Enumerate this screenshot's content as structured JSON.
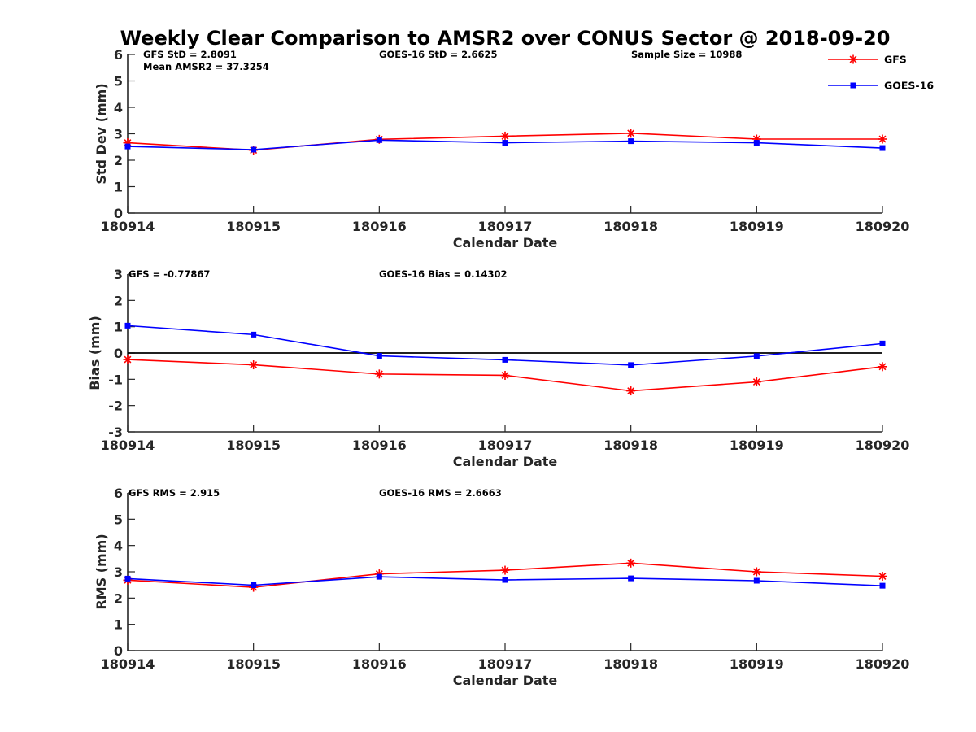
{
  "figure": {
    "title": "Weekly Clear Comparison to AMSR2 over CONUS Sector @ 2018-09-20"
  },
  "legend": {
    "placement": "top-right",
    "entries": [
      {
        "name": "GFS",
        "color": "#ff0000",
        "marker": "asterisk"
      },
      {
        "name": "GOES-16",
        "color": "#0000ff",
        "marker": "square"
      }
    ]
  },
  "chart_data": [
    {
      "type": "line",
      "id": "stddev",
      "xlabel": "Calendar Date",
      "ylabel": "Std Dev (mm)",
      "categories": [
        "180914",
        "180915",
        "180916",
        "180917",
        "180918",
        "180919",
        "180920"
      ],
      "ylim": [
        0,
        6
      ],
      "yticks": [
        "0",
        "1",
        "2",
        "3",
        "4",
        "5",
        "6"
      ],
      "zero_line": false,
      "annotations": [
        {
          "text": "GFS StD = 2.8091",
          "anchor": "left"
        },
        {
          "text": "Mean AMSR2 = 37.3254",
          "anchor": "left-line2"
        },
        {
          "text": "GOES-16 StD = 2.6625",
          "anchor": "center"
        },
        {
          "text": "Sample Size = 10988",
          "anchor": "right"
        }
      ],
      "series": [
        {
          "name": "GFS",
          "color": "#ff0000",
          "marker": "asterisk",
          "values": [
            2.66,
            2.38,
            2.79,
            2.91,
            3.02,
            2.8,
            2.8
          ]
        },
        {
          "name": "GOES-16",
          "color": "#0000ff",
          "marker": "square",
          "values": [
            2.52,
            2.4,
            2.76,
            2.66,
            2.72,
            2.66,
            2.46
          ]
        }
      ]
    },
    {
      "type": "line",
      "id": "bias",
      "xlabel": "Calendar Date",
      "ylabel": "Bias (mm)",
      "categories": [
        "180914",
        "180915",
        "180916",
        "180917",
        "180918",
        "180919",
        "180920"
      ],
      "ylim": [
        -3,
        3
      ],
      "yticks": [
        "-3",
        "-2",
        "-1",
        "0",
        "1",
        "2",
        "3"
      ],
      "zero_line": true,
      "annotations": [
        {
          "text": "GFS = -0.77867",
          "anchor": "left"
        },
        {
          "text": "GOES-16 Bias  = 0.14302",
          "anchor": "center"
        }
      ],
      "series": [
        {
          "name": "GFS",
          "color": "#ff0000",
          "marker": "asterisk",
          "values": [
            -0.25,
            -0.45,
            -0.8,
            -0.85,
            -1.44,
            -1.1,
            -0.52
          ]
        },
        {
          "name": "GOES-16",
          "color": "#0000ff",
          "marker": "square",
          "values": [
            1.04,
            0.7,
            -0.11,
            -0.26,
            -0.46,
            -0.12,
            0.36
          ]
        }
      ]
    },
    {
      "type": "line",
      "id": "rms",
      "xlabel": "Calendar Date",
      "ylabel": "RMS (mm)",
      "categories": [
        "180914",
        "180915",
        "180916",
        "180917",
        "180918",
        "180919",
        "180920"
      ],
      "ylim": [
        0,
        6
      ],
      "yticks": [
        "0",
        "1",
        "2",
        "3",
        "4",
        "5",
        "6"
      ],
      "zero_line": false,
      "annotations": [
        {
          "text": "GFS RMS = 2.915",
          "anchor": "left"
        },
        {
          "text": "GOES-16 RMS = 2.6663",
          "anchor": "center"
        }
      ],
      "series": [
        {
          "name": "GFS",
          "color": "#ff0000",
          "marker": "asterisk",
          "values": [
            2.68,
            2.41,
            2.92,
            3.06,
            3.33,
            3.0,
            2.83
          ]
        },
        {
          "name": "GOES-16",
          "color": "#0000ff",
          "marker": "square",
          "values": [
            2.74,
            2.49,
            2.81,
            2.69,
            2.75,
            2.66,
            2.47
          ]
        }
      ]
    }
  ]
}
